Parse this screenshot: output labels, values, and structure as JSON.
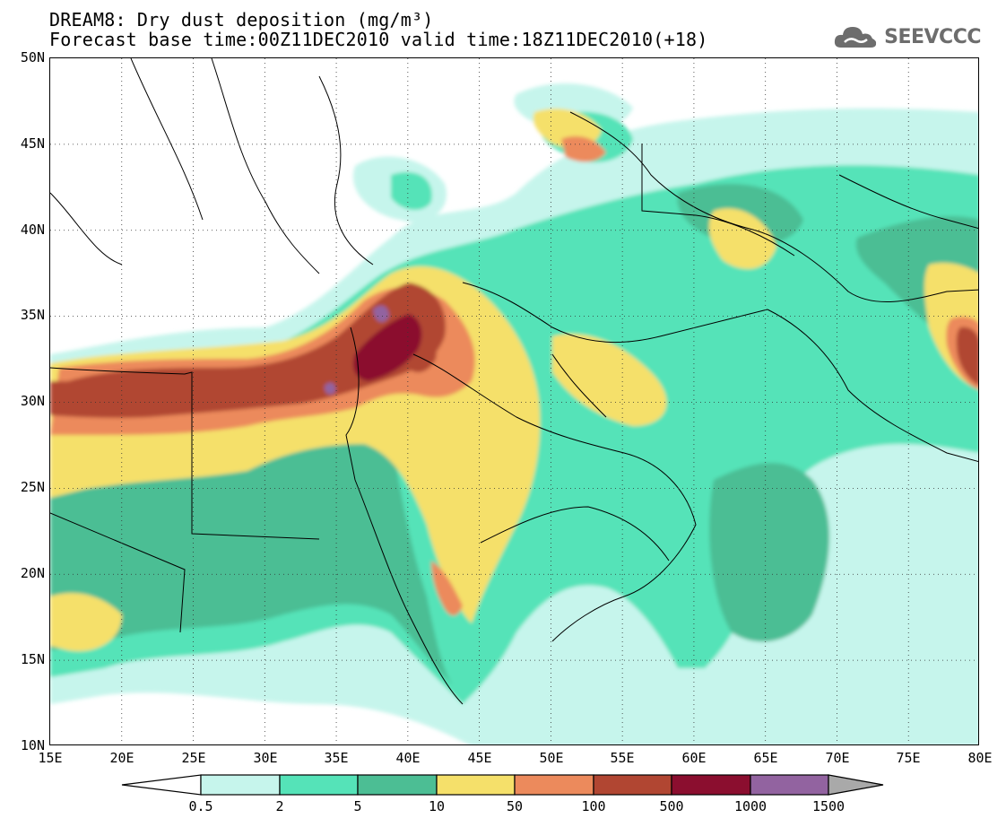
{
  "title": {
    "line1": "DREAM8: Dry dust deposition (mg/m³)",
    "line2": "Forecast base time:00Z11DEC2010 valid time:18Z11DEC2010(+18)"
  },
  "logo": {
    "text": "SEEVCCC",
    "icon": "cloud-icon"
  },
  "map": {
    "lon_range": [
      15,
      80
    ],
    "lat_range": [
      10,
      50
    ],
    "lat_ticks": [
      "50N",
      "45N",
      "40N",
      "35N",
      "30N",
      "25N",
      "20N",
      "15N",
      "10N"
    ],
    "lon_ticks": [
      "15E",
      "20E",
      "25E",
      "30E",
      "35E",
      "40E",
      "45E",
      "50E",
      "55E",
      "60E",
      "65E",
      "70E",
      "75E",
      "80E"
    ],
    "gridlines": true
  },
  "colorbar": {
    "levels": [
      "0.5",
      "2",
      "5",
      "10",
      "50",
      "100",
      "500",
      "1000",
      "1500"
    ],
    "colors": [
      "#c6f5ec",
      "#55e3b8",
      "#4cbe94",
      "#f5e06a",
      "#ec8a5c",
      "#b14632",
      "#8b0e2f",
      "#9263a0",
      "#a9a9a9"
    ],
    "low_color": "#ffffff"
  }
}
